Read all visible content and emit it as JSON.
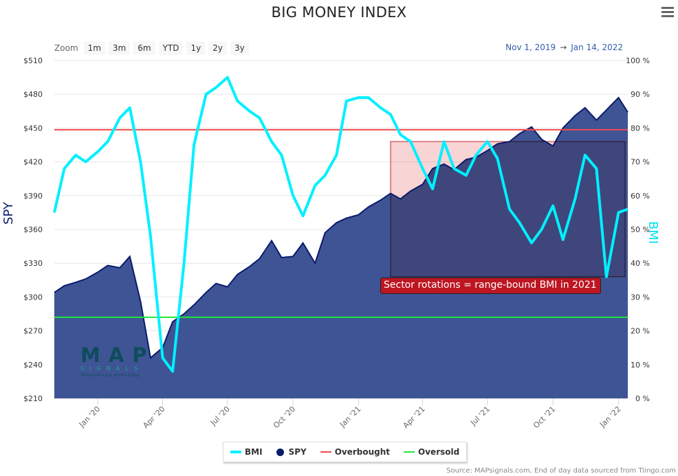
{
  "header": {
    "title": "BIG MONEY INDEX",
    "menu_icon": "hamburger-menu-icon"
  },
  "zoom": {
    "label": "Zoom",
    "buttons": [
      "1m",
      "3m",
      "6m",
      "YTD",
      "1y",
      "2y",
      "3y"
    ]
  },
  "range": {
    "from": "Nov 1, 2019",
    "arrow": "→",
    "to": "Jan 14, 2022"
  },
  "annotation": {
    "text": "Sector rotations = range-bound BMI in 2021",
    "color": "#bd1622"
  },
  "logo": {
    "name": "MAP",
    "sub": "SIGNALS",
    "tagline": "Tomorrow's top stocks today."
  },
  "source": "Source: MAPsignals.com, End of day data sourced from Tiingo.com",
  "colors": {
    "bmi": "#00f0ff",
    "spy_fill": "#3f5495",
    "spy_line": "#0a1a6b",
    "overbought": "#f04a4a",
    "oversold": "#1ee63a",
    "highlight_box": "#f4b7b9"
  },
  "chart_data": {
    "type": "line",
    "title": "BIG MONEY INDEX",
    "date_range": [
      "Nov 1, 2019",
      "Jan 14, 2022"
    ],
    "xlabel": "",
    "ylabel_left": "SPY",
    "ylabel_right": "BMI",
    "ylim_left": [
      210,
      510
    ],
    "ylim_right": [
      0,
      100
    ],
    "y_ticks_left": [
      "$510",
      "$480",
      "$450",
      "$420",
      "$390",
      "$360",
      "$330",
      "$300",
      "$270",
      "$240",
      "$210"
    ],
    "y_ticks_right": [
      "100 %",
      "90 %",
      "80 %",
      "70 %",
      "60 %",
      "50 %",
      "40 %",
      "30 %",
      "20 %",
      "10 %",
      "0 %"
    ],
    "x_ticks": [
      "Jan '20",
      "Apr '20",
      "Jul '20",
      "Oct '20",
      "Jan '21",
      "Apr '21",
      "Jul '21",
      "Oct '21",
      "Jan '22"
    ],
    "grid": true,
    "legend_position": "bottom",
    "legend": [
      "BMI",
      "SPY",
      "Overbought",
      "Oversold"
    ],
    "overbought_level": 79.5,
    "oversold_level": 24,
    "highlight_region": {
      "from": "Feb 2021",
      "to": "Jan 2022",
      "bmi_low": 36,
      "bmi_high": 76
    },
    "series": [
      {
        "name": "BMI",
        "unit": "%",
        "x": [
          "2019-11-01",
          "2019-11-15",
          "2019-12-01",
          "2019-12-15",
          "2020-01-01",
          "2020-01-15",
          "2020-02-01",
          "2020-02-15",
          "2020-03-01",
          "2020-03-15",
          "2020-04-01",
          "2020-04-15",
          "2020-05-01",
          "2020-05-15",
          "2020-06-01",
          "2020-06-15",
          "2020-07-01",
          "2020-07-15",
          "2020-08-01",
          "2020-08-15",
          "2020-09-01",
          "2020-09-15",
          "2020-10-01",
          "2020-10-15",
          "2020-11-01",
          "2020-11-15",
          "2020-12-01",
          "2020-12-15",
          "2021-01-01",
          "2021-01-15",
          "2021-02-01",
          "2021-02-15",
          "2021-03-01",
          "2021-03-15",
          "2021-04-01",
          "2021-04-15",
          "2021-05-01",
          "2021-05-15",
          "2021-06-01",
          "2021-06-15",
          "2021-07-01",
          "2021-07-15",
          "2021-08-01",
          "2021-08-15",
          "2021-09-01",
          "2021-09-15",
          "2021-10-01",
          "2021-10-15",
          "2021-11-01",
          "2021-11-15",
          "2021-12-01",
          "2021-12-15",
          "2022-01-01",
          "2022-01-14"
        ],
        "values": [
          55,
          68,
          72,
          70,
          73,
          76,
          83,
          86,
          70,
          48,
          12,
          8,
          40,
          75,
          90,
          92,
          95,
          88,
          85,
          83,
          76,
          72,
          60,
          54,
          63,
          66,
          72,
          88,
          89,
          89,
          86,
          84,
          78,
          76,
          68,
          62,
          76,
          68,
          66,
          72,
          76,
          71,
          56,
          52,
          46,
          50,
          57,
          47,
          59,
          72,
          68,
          36,
          55,
          56
        ]
      },
      {
        "name": "SPY",
        "unit": "$",
        "x": [
          "2019-11-01",
          "2019-11-15",
          "2019-12-01",
          "2019-12-15",
          "2020-01-01",
          "2020-01-15",
          "2020-02-01",
          "2020-02-15",
          "2020-03-01",
          "2020-03-15",
          "2020-04-01",
          "2020-04-15",
          "2020-05-01",
          "2020-05-15",
          "2020-06-01",
          "2020-06-15",
          "2020-07-01",
          "2020-07-15",
          "2020-08-01",
          "2020-08-15",
          "2020-09-01",
          "2020-09-15",
          "2020-10-01",
          "2020-10-15",
          "2020-11-01",
          "2020-11-15",
          "2020-12-01",
          "2020-12-15",
          "2021-01-01",
          "2021-01-15",
          "2021-02-01",
          "2021-02-15",
          "2021-03-01",
          "2021-03-15",
          "2021-04-01",
          "2021-04-15",
          "2021-05-01",
          "2021-05-15",
          "2021-06-01",
          "2021-06-15",
          "2021-07-01",
          "2021-07-15",
          "2021-08-01",
          "2021-08-15",
          "2021-09-01",
          "2021-09-15",
          "2021-10-01",
          "2021-10-15",
          "2021-11-01",
          "2021-11-15",
          "2021-12-01",
          "2021-12-15",
          "2022-01-01",
          "2022-01-14"
        ],
        "values": [
          304,
          310,
          313,
          316,
          322,
          328,
          326,
          336,
          296,
          246,
          255,
          278,
          285,
          293,
          304,
          312,
          309,
          320,
          327,
          334,
          350,
          335,
          336,
          348,
          330,
          357,
          366,
          370,
          373,
          380,
          386,
          392,
          387,
          394,
          400,
          414,
          418,
          413,
          422,
          424,
          430,
          436,
          438,
          445,
          451,
          440,
          434,
          450,
          461,
          468,
          457,
          466,
          477,
          464
        ]
      }
    ]
  }
}
